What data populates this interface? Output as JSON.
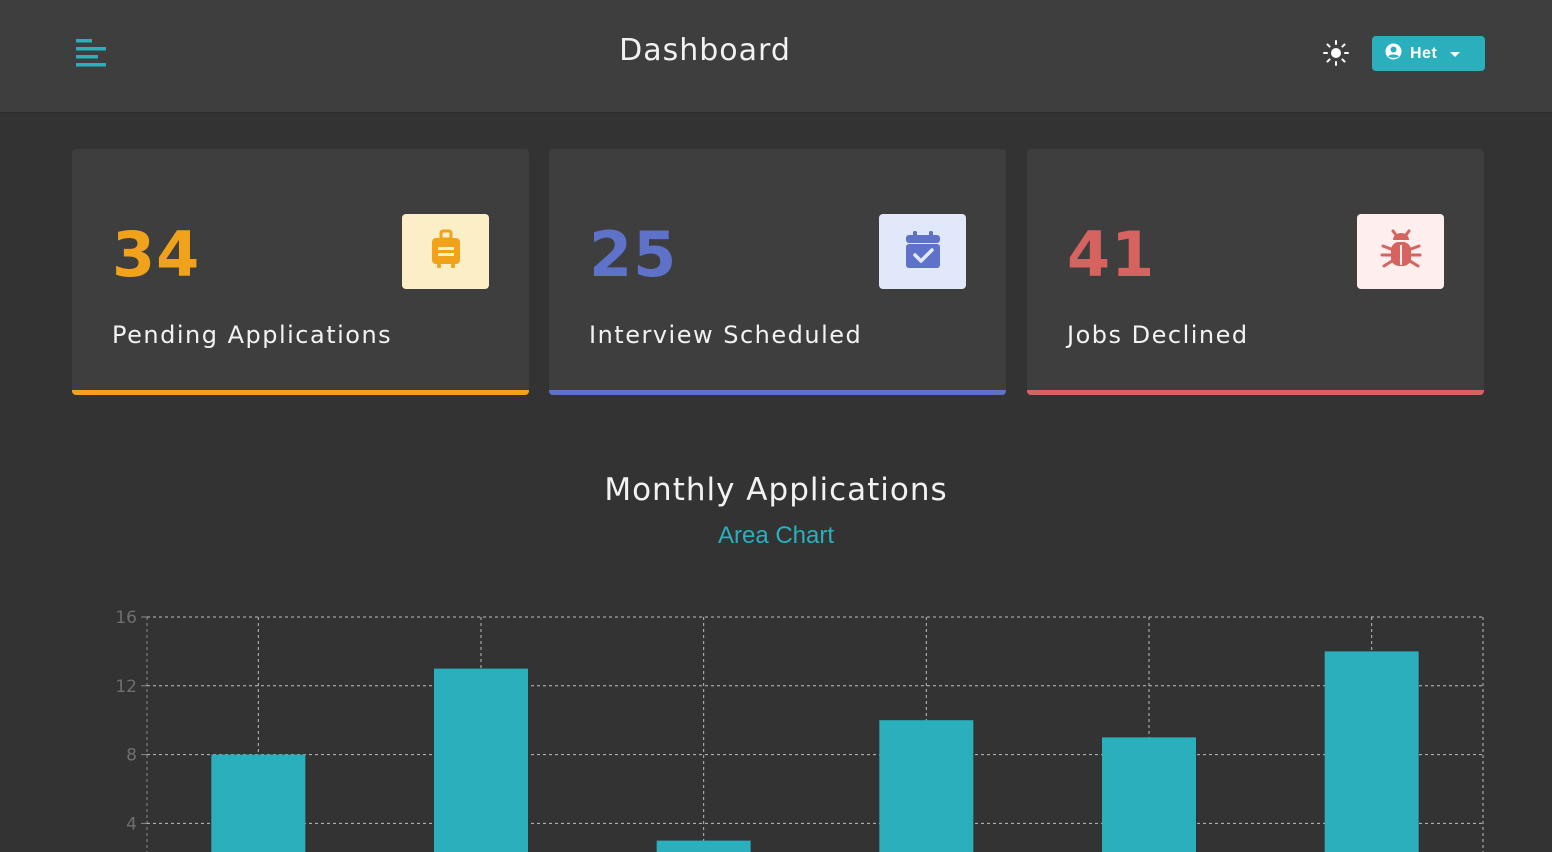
{
  "header": {
    "title": "Dashboard",
    "user_name": "Het",
    "icons": [
      "hamburger-menu-icon",
      "sun-icon",
      "user-circle-icon",
      "caret-down-icon"
    ]
  },
  "stats": [
    {
      "count": "34",
      "label": "Pending Applications",
      "color": "#f0a21b",
      "icon_bg": "#fcefc7",
      "icon": "suitcase-icon"
    },
    {
      "count": "25",
      "label": "Interview Scheduled",
      "color": "#5e72c9",
      "icon_bg": "#e0e8f9",
      "icon": "calendar-check-icon"
    },
    {
      "count": "41",
      "label": "Jobs Declined",
      "color": "#d6635f",
      "icon_bg": "#ffeeee",
      "icon": "bug-icon"
    }
  ],
  "chart": {
    "title": "Monthly Applications",
    "toggle_label": "Area Chart"
  },
  "chart_data": {
    "type": "bar",
    "title": "Monthly Applications",
    "categories": [
      "",
      "",
      "",
      "",
      "",
      ""
    ],
    "values": [
      8,
      13,
      3,
      10,
      9,
      14
    ],
    "ylim": [
      0,
      16
    ],
    "yticks": [
      4,
      8,
      12,
      16
    ],
    "grid": true,
    "bar_color": "#2ab0bd"
  }
}
